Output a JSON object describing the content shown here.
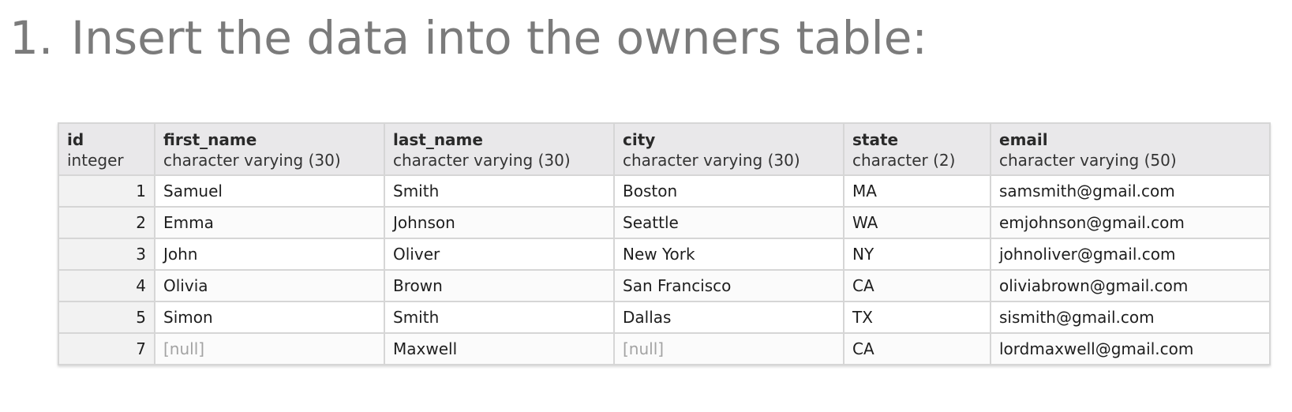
{
  "heading": {
    "number": "1.",
    "text": "Insert the data into the owners table:"
  },
  "table": {
    "columns": [
      {
        "name": "id",
        "type": "integer"
      },
      {
        "name": "first_name",
        "type": "character varying (30)"
      },
      {
        "name": "last_name",
        "type": "character varying (30)"
      },
      {
        "name": "city",
        "type": "character varying (30)"
      },
      {
        "name": "state",
        "type": "character (2)"
      },
      {
        "name": "email",
        "type": "character varying (50)"
      }
    ],
    "rows": [
      [
        "1",
        "Samuel",
        "Smith",
        "Boston",
        "MA",
        "samsmith@gmail.com"
      ],
      [
        "2",
        "Emma",
        "Johnson",
        "Seattle",
        "WA",
        "emjohnson@gmail.com"
      ],
      [
        "3",
        "John",
        "Oliver",
        "New York",
        "NY",
        "johnoliver@gmail.com"
      ],
      [
        "4",
        "Olivia",
        "Brown",
        "San Francisco",
        "CA",
        "oliviabrown@gmail.com"
      ],
      [
        "5",
        "Simon",
        "Smith",
        "Dallas",
        "TX",
        "sismith@gmail.com"
      ],
      [
        "7",
        "[null]",
        "Maxwell",
        "[null]",
        "CA",
        "lordmaxwell@gmail.com"
      ]
    ],
    "null_color": "#a3a3a3",
    "header_background": "#e9e8ea"
  }
}
